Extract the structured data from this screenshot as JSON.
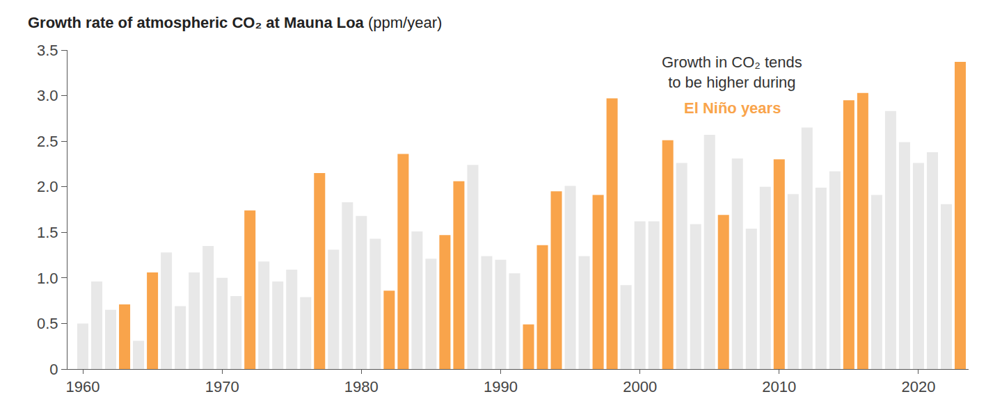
{
  "chart_data": {
    "type": "bar",
    "title": "Growth rate of atmospheric CO₂ at Mauna Loa",
    "y_label": "(ppm/year)",
    "annotation": [
      "Growth in CO₂ tends",
      "to be higher during"
    ],
    "annotation_highlight": "El Niño years",
    "x": [
      1960,
      1961,
      1962,
      1963,
      1964,
      1965,
      1966,
      1967,
      1968,
      1969,
      1970,
      1971,
      1972,
      1973,
      1974,
      1975,
      1976,
      1977,
      1978,
      1979,
      1980,
      1981,
      1982,
      1983,
      1984,
      1985,
      1986,
      1987,
      1988,
      1989,
      1990,
      1991,
      1992,
      1993,
      1994,
      1995,
      1996,
      1997,
      1998,
      1999,
      2000,
      2001,
      2002,
      2003,
      2004,
      2005,
      2006,
      2007,
      2008,
      2009,
      2010,
      2011,
      2012,
      2013,
      2014,
      2015,
      2016,
      2017,
      2018,
      2019,
      2020,
      2021,
      2022,
      2023
    ],
    "values": [
      0.5,
      0.96,
      0.65,
      0.71,
      0.31,
      1.06,
      1.28,
      0.69,
      1.06,
      1.35,
      1.0,
      0.8,
      1.74,
      1.18,
      0.96,
      1.09,
      0.79,
      2.15,
      1.31,
      1.83,
      1.68,
      1.43,
      0.86,
      2.36,
      1.51,
      1.21,
      1.47,
      2.06,
      2.24,
      1.24,
      1.2,
      1.05,
      0.49,
      1.36,
      1.95,
      2.01,
      1.24,
      1.91,
      2.97,
      0.92,
      1.62,
      1.62,
      2.51,
      2.26,
      1.59,
      2.57,
      1.69,
      2.31,
      1.54,
      2.0,
      2.3,
      1.92,
      2.65,
      1.99,
      2.17,
      2.95,
      3.03,
      1.91,
      2.83,
      2.49,
      2.26,
      2.38,
      1.81,
      3.37
    ],
    "colors": [
      "#e8e8e8",
      "#e8e8e8",
      "#e8e8e8",
      "#f9a44b",
      "#e8e8e8",
      "#f9a44b",
      "#e8e8e8",
      "#e8e8e8",
      "#e8e8e8",
      "#e8e8e8",
      "#e8e8e8",
      "#e8e8e8",
      "#f9a44b",
      "#e8e8e8",
      "#e8e8e8",
      "#e8e8e8",
      "#e8e8e8",
      "#f9a44b",
      "#e8e8e8",
      "#e8e8e8",
      "#e8e8e8",
      "#e8e8e8",
      "#f9a44b",
      "#f9a44b",
      "#e8e8e8",
      "#e8e8e8",
      "#f9a44b",
      "#f9a44b",
      "#e8e8e8",
      "#e8e8e8",
      "#e8e8e8",
      "#e8e8e8",
      "#f9a44b",
      "#f9a44b",
      "#f9a44b",
      "#e8e8e8",
      "#e8e8e8",
      "#f9a44b",
      "#f9a44b",
      "#e8e8e8",
      "#e8e8e8",
      "#e8e8e8",
      "#f9a44b",
      "#e8e8e8",
      "#e8e8e8",
      "#e8e8e8",
      "#f9a44b",
      "#e8e8e8",
      "#e8e8e8",
      "#e8e8e8",
      "#f9a44b",
      "#e8e8e8",
      "#e8e8e8",
      "#e8e8e8",
      "#e8e8e8",
      "#f9a44b",
      "#f9a44b",
      "#e8e8e8",
      "#e8e8e8",
      "#e8e8e8",
      "#e8e8e8",
      "#e8e8e8",
      "#e8e8e8",
      "#f9a44b"
    ],
    "color": "#f9a44b",
    "xlim": [
      1958.9,
      2023.6
    ],
    "xticks": [
      1960,
      1970,
      1980,
      1990,
      2000,
      2010,
      2020
    ],
    "ylim": [
      0,
      3.5
    ],
    "yticks": [
      0,
      0.5,
      {
        "value": 1,
        "label": "1.0"
      },
      1.5,
      {
        "value": 2,
        "label": "2.0"
      },
      2.5,
      {
        "value": 3,
        "label": "3.0"
      },
      3.5
    ],
    "grid": false
  }
}
